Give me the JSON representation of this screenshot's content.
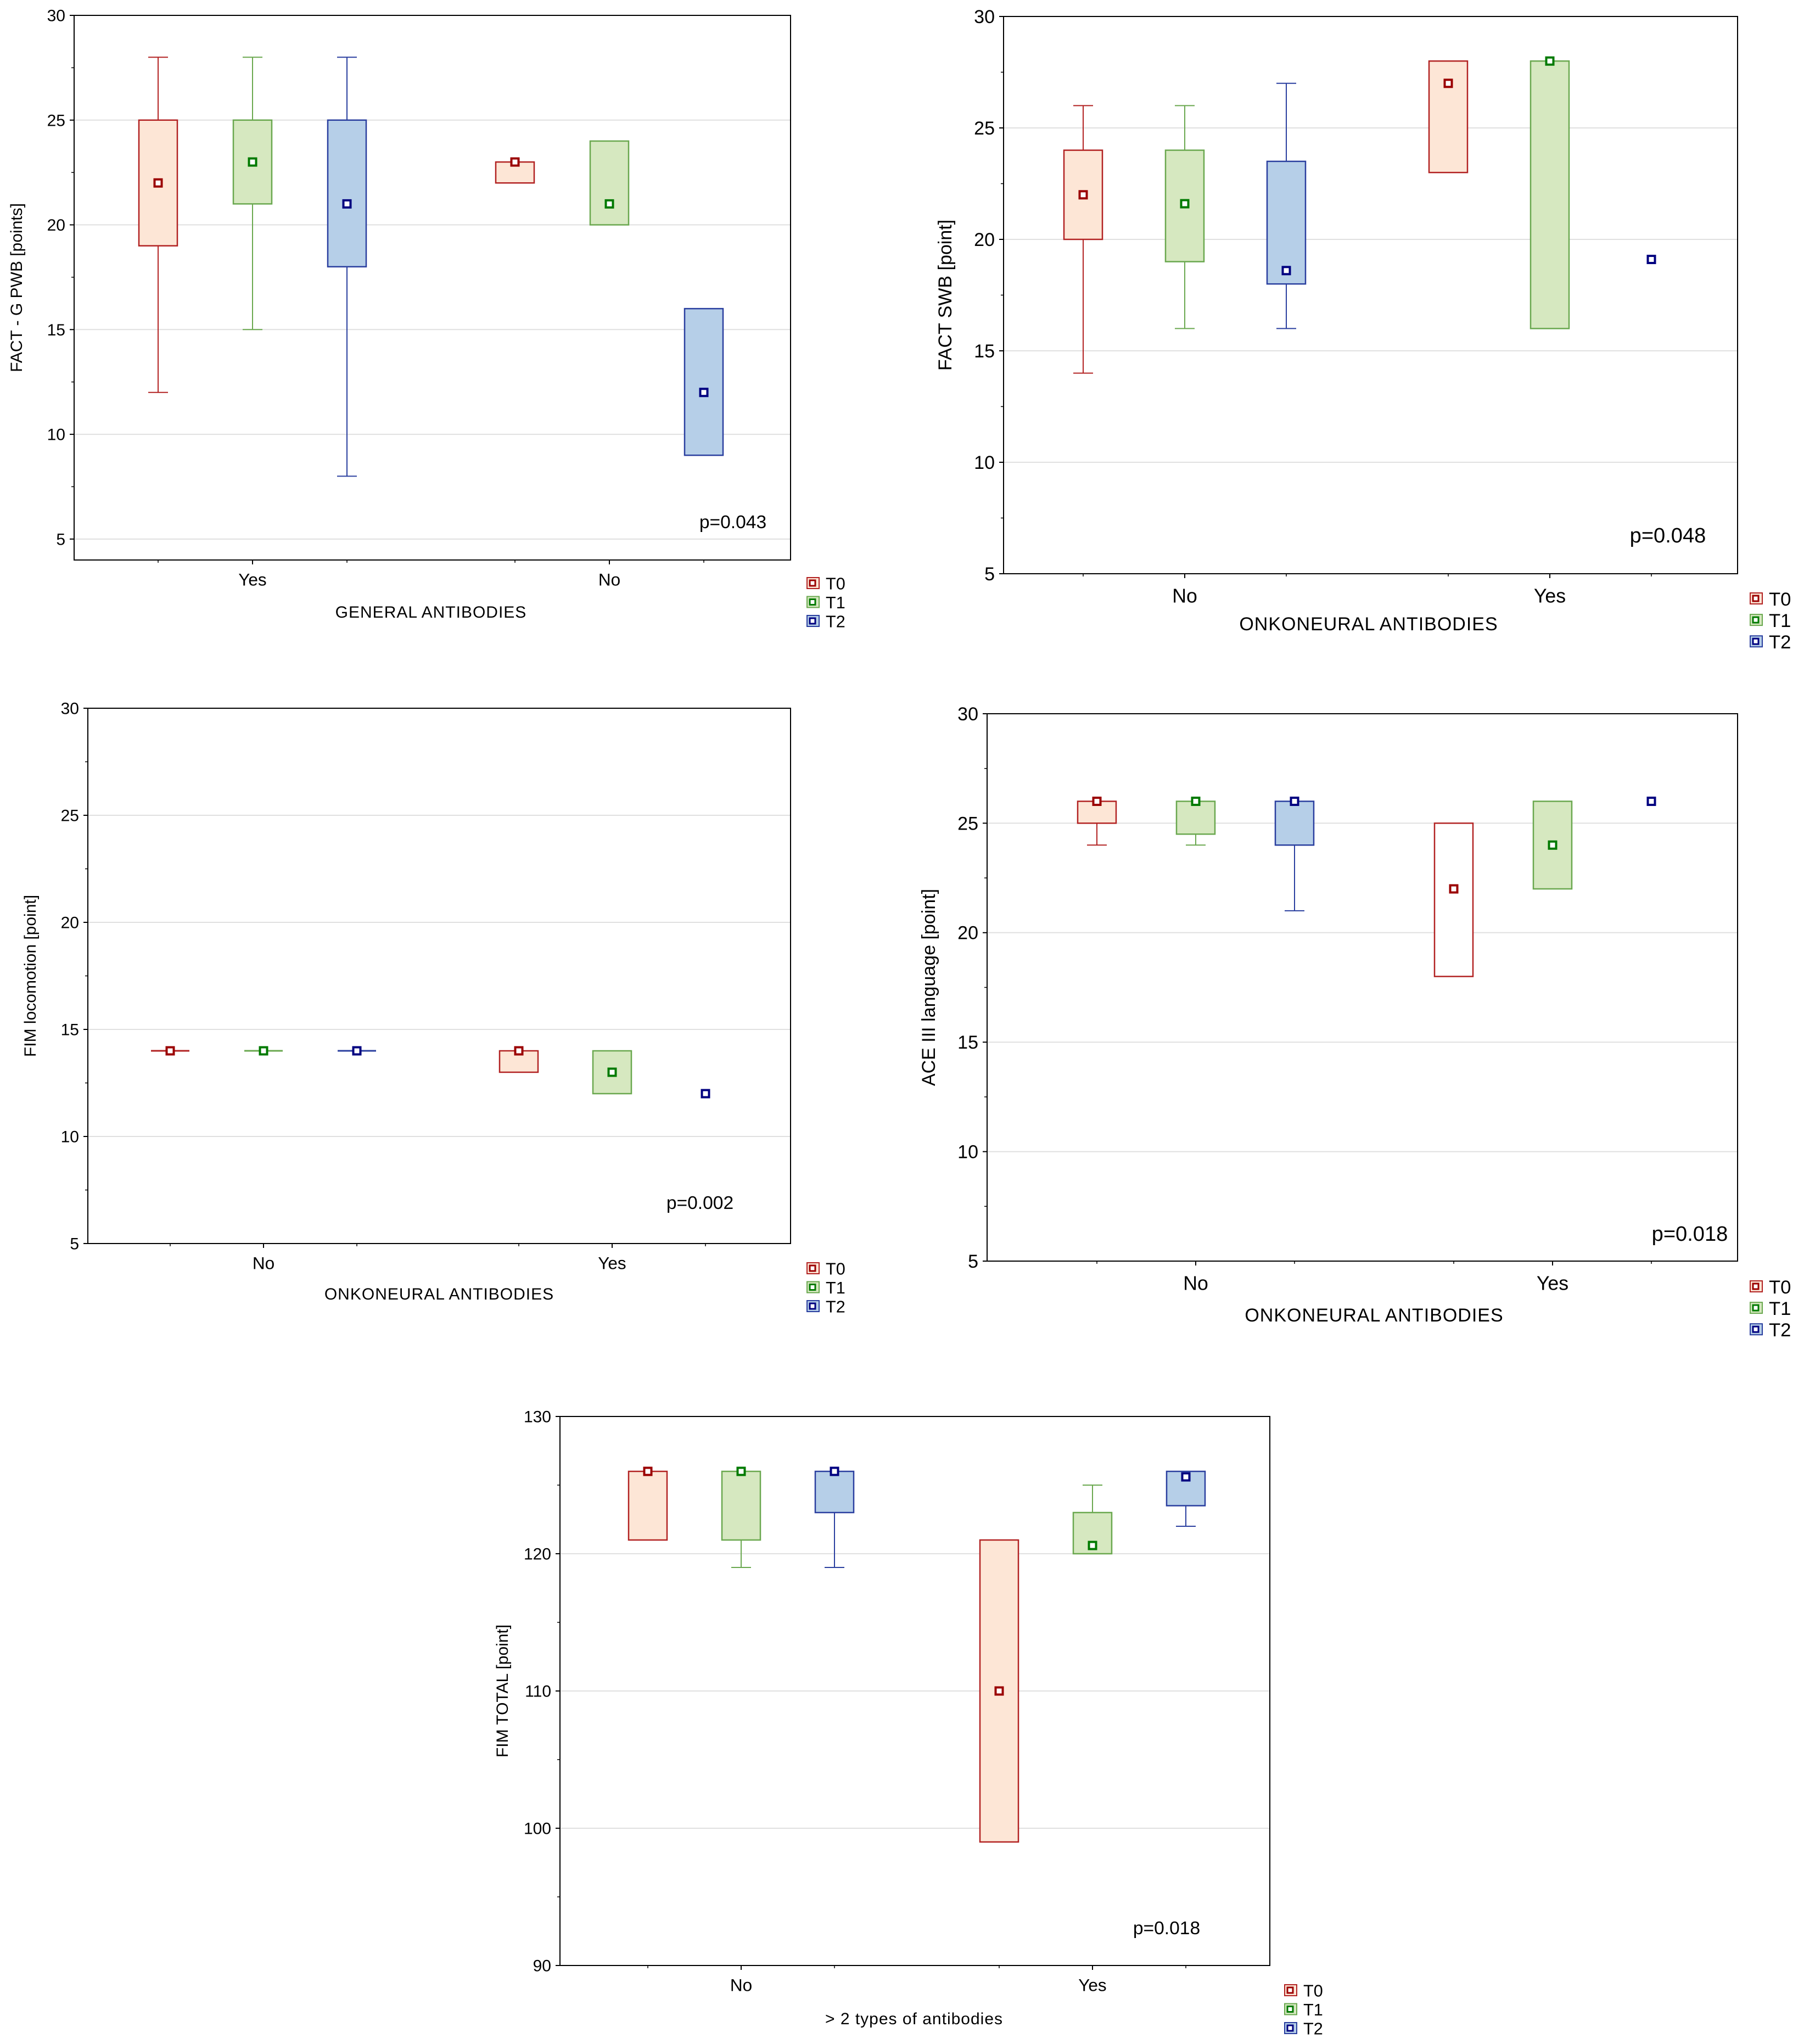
{
  "colors": {
    "T0": {
      "stroke": "#b22222",
      "fill": "#fde6d6",
      "marker": "#9b0000"
    },
    "T1": {
      "stroke": "#6aa84f",
      "fill": "#d6e8c0",
      "marker": "#007a00"
    },
    "T2": {
      "stroke": "#2a3f9f",
      "fill": "#b6cfe8",
      "marker": "#000080"
    },
    "grid": "#e0e0e0",
    "axis": "#000000"
  },
  "chart_data": [
    {
      "type": "box",
      "ylabel": "FACT - G PWB [points]",
      "xlabel": "GENERAL ANTIBODIES",
      "ylim": [
        4,
        30
      ],
      "yticks": [
        5,
        10,
        15,
        20,
        25,
        30
      ],
      "categories": [
        "Yes",
        "No"
      ],
      "legend": [
        "T0",
        "T1",
        "T2"
      ],
      "annotation": "p=0.043",
      "series": [
        {
          "name": "T0",
          "boxes": [
            {
              "median": 22,
              "q1": 19,
              "q3": 25,
              "min": 12,
              "max": 28
            },
            {
              "median": 23,
              "q1": 22,
              "q3": 23
            }
          ]
        },
        {
          "name": "T1",
          "boxes": [
            {
              "median": 23,
              "q1": 21,
              "q3": 25,
              "min": 15,
              "max": 28
            },
            {
              "median": 21,
              "q1": 20,
              "q3": 24
            }
          ]
        },
        {
          "name": "T2",
          "boxes": [
            {
              "median": 21,
              "q1": 18,
              "q3": 25,
              "min": 8,
              "max": 28
            },
            {
              "median": 12,
              "q1": 9,
              "q3": 16
            }
          ]
        }
      ]
    },
    {
      "type": "box",
      "ylabel": "FACT SWB [point]",
      "xlabel": "ONKONEURAL ANTIBODIES",
      "ylim": [
        5,
        30
      ],
      "yticks": [
        5,
        10,
        15,
        20,
        25,
        30
      ],
      "categories": [
        "No",
        "Yes"
      ],
      "legend": [
        "T0",
        "T1",
        "T2"
      ],
      "annotation": "p=0.048",
      "series": [
        {
          "name": "T0",
          "boxes": [
            {
              "median": 22,
              "q1": 20,
              "q3": 24,
              "min": 14,
              "max": 26
            },
            {
              "median": 27,
              "q1": 23,
              "q3": 28
            }
          ]
        },
        {
          "name": "T1",
          "boxes": [
            {
              "median": 21.6,
              "q1": 19,
              "q3": 24,
              "min": 16,
              "max": 26
            },
            {
              "median": 28,
              "q1": 16,
              "q3": 28
            }
          ]
        },
        {
          "name": "T2",
          "boxes": [
            {
              "median": 18.6,
              "q1": 18,
              "q3": 23.5,
              "min": 16,
              "max": 27
            },
            {
              "median": 19.1
            }
          ]
        }
      ]
    },
    {
      "type": "box",
      "ylabel": "FIM locomotion [point]",
      "xlabel": "ONKONEURAL ANTIBODIES",
      "ylim": [
        5,
        30
      ],
      "yticks": [
        5,
        10,
        15,
        20,
        25,
        30
      ],
      "categories": [
        "No",
        "Yes"
      ],
      "legend": [
        "T0",
        "T1",
        "T2"
      ],
      "annotation": "p=0.002",
      "series": [
        {
          "name": "T0",
          "boxes": [
            {
              "median": 14,
              "q1": 14,
              "q3": 14
            },
            {
              "median": 14,
              "q1": 13,
              "q3": 14
            }
          ]
        },
        {
          "name": "T1",
          "boxes": [
            {
              "median": 14,
              "q1": 14,
              "q3": 14
            },
            {
              "median": 13,
              "q1": 12,
              "q3": 14
            }
          ]
        },
        {
          "name": "T2",
          "boxes": [
            {
              "median": 14,
              "q1": 14,
              "q3": 14
            },
            {
              "median": 12
            }
          ]
        }
      ]
    },
    {
      "type": "box",
      "ylabel": "ACE III language [point]",
      "xlabel": "ONKONEURAL ANTIBODIES",
      "ylim": [
        5,
        30
      ],
      "yticks": [
        5,
        10,
        15,
        20,
        25,
        30
      ],
      "categories": [
        "No",
        "Yes"
      ],
      "legend": [
        "T0",
        "T1",
        "T2"
      ],
      "annotation": "p=0.018",
      "series": [
        {
          "name": "T0",
          "boxes": [
            {
              "median": 26,
              "q1": 25,
              "q3": 26,
              "min": 24,
              "max": 26
            },
            {
              "median": 22,
              "q1": 18,
              "q3": 25
            }
          ]
        },
        {
          "name": "T1",
          "boxes": [
            {
              "median": 26,
              "q1": 24.5,
              "q3": 26,
              "min": 24,
              "max": 26
            },
            {
              "median": 24,
              "q1": 22,
              "q3": 26
            }
          ]
        },
        {
          "name": "T2",
          "boxes": [
            {
              "median": 26,
              "q1": 24,
              "q3": 26,
              "min": 21,
              "max": 26
            },
            {
              "median": 26
            }
          ]
        }
      ]
    },
    {
      "type": "box",
      "ylabel": "FIM TOTAL [point]",
      "xlabel": "> 2 types of antibodies",
      "ylim": [
        90,
        130
      ],
      "yticks": [
        90,
        100,
        110,
        120,
        130
      ],
      "categories": [
        "No",
        "Yes"
      ],
      "legend": [
        "T0",
        "T1",
        "T2"
      ],
      "annotation": "p=0.018",
      "series": [
        {
          "name": "T0",
          "boxes": [
            {
              "median": 126,
              "q1": 121,
              "q3": 126
            },
            {
              "median": 110,
              "q1": 99,
              "q3": 121
            }
          ]
        },
        {
          "name": "T1",
          "boxes": [
            {
              "median": 126,
              "q1": 121,
              "q3": 126,
              "min": 119,
              "max": 126
            },
            {
              "median": 120.6,
              "q1": 120,
              "q3": 123,
              "min": 120,
              "max": 125
            }
          ]
        },
        {
          "name": "T2",
          "boxes": [
            {
              "median": 126,
              "q1": 123,
              "q3": 126,
              "min": 119,
              "max": 126
            },
            {
              "median": 125.6,
              "q1": 123.5,
              "q3": 126,
              "min": 122,
              "max": 126
            }
          ]
        }
      ]
    }
  ]
}
